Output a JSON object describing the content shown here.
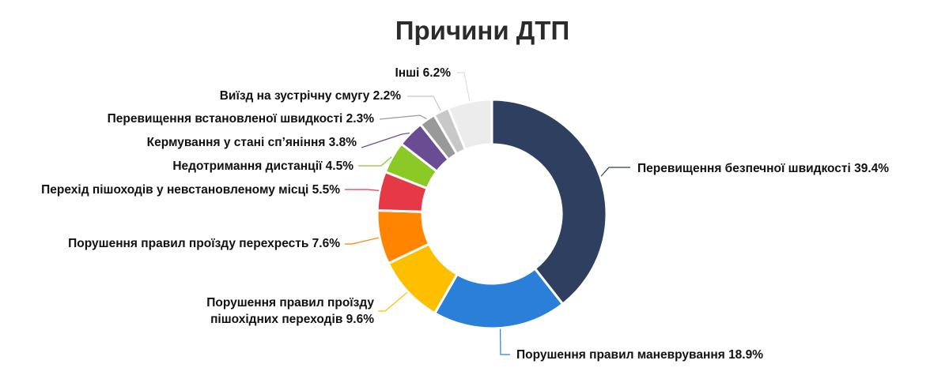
{
  "chart_data": {
    "type": "pie",
    "donut": true,
    "title": "Причини ДТП",
    "slices": [
      {
        "label": "Перевищення безпечної швидкості",
        "value": 39.4,
        "display": "Перевищення безпечної швидкості 39.4%",
        "color": "#2e3f5f"
      },
      {
        "label": "Порушення правил маневрування",
        "value": 18.9,
        "display": "Порушення правил маневрування 18.9%",
        "color": "#2a7fd9"
      },
      {
        "label": "Порушення правил проїзду пішохідних переходів",
        "value": 9.6,
        "display": "Порушення правил проїзду",
        "display2": "пішохідних переходів 9.6%",
        "color": "#fdbf00"
      },
      {
        "label": "Порушення правил проїзду перехресть",
        "value": 7.6,
        "display": "Порушення правил проїзду перехресть 7.6%",
        "color": "#ff8500"
      },
      {
        "label": "Перехід пішоходів у невстановленому місці",
        "value": 5.5,
        "display": "Перехід пішоходів у невстановленому місці 5.5%",
        "color": "#e63946"
      },
      {
        "label": "Недотримання дистанції",
        "value": 4.5,
        "display": "Недотримання дистанції 4.5%",
        "color": "#8ac926"
      },
      {
        "label": "Кермування у стані сп'яніння",
        "value": 3.8,
        "display": "Кермування у стані сп’яніння 3.8%",
        "color": "#6a4c93"
      },
      {
        "label": "Перевищення встановленої швидкості",
        "value": 2.3,
        "display": "Перевищення встановленої швидкості 2.3%",
        "color": "#999999"
      },
      {
        "label": "Виїзд на зустрічну смугу",
        "value": 2.2,
        "display": "Виїзд на зустрічну смугу 2.2%",
        "color": "#c8c8c8"
      },
      {
        "label": "Інші",
        "value": 6.2,
        "display": "Інші 6.2%",
        "color": "#ececec"
      }
    ]
  }
}
